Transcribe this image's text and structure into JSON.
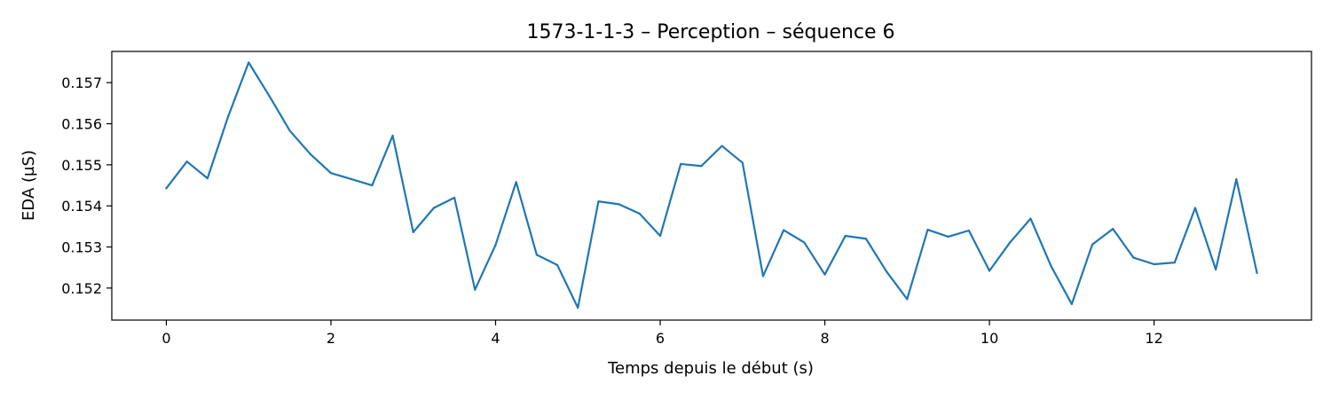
{
  "chart_data": {
    "type": "line",
    "title": "1573-1-1-3 – Perception – séquence 6",
    "xlabel": "Temps depuis le début (s)",
    "ylabel": "EDA (µS)",
    "xlim": [
      -0.6625,
      13.9125
    ],
    "ylim": [
      0.15122,
      0.15776
    ],
    "x_ticks": [
      0,
      2,
      4,
      6,
      8,
      10,
      12
    ],
    "y_ticks": [
      0.152,
      0.153,
      0.154,
      0.155,
      0.156,
      0.157
    ],
    "x_tick_labels": [
      "0",
      "2",
      "4",
      "6",
      "8",
      "10",
      "12"
    ],
    "y_tick_labels": [
      "0.152",
      "0.153",
      "0.154",
      "0.155",
      "0.156",
      "0.157"
    ],
    "grid": false,
    "legend": "none",
    "series": [
      {
        "color": "#1f77b4",
        "x": [
          0,
          0.25,
          0.5,
          0.75,
          1,
          1.25,
          1.5,
          1.75,
          2,
          2.25,
          2.5,
          2.75,
          3,
          3.25,
          3.5,
          3.75,
          4,
          4.25,
          4.5,
          4.75,
          5,
          5.25,
          5.5,
          5.75,
          6,
          6.25,
          6.5,
          6.75,
          7,
          7.25,
          7.5,
          7.75,
          8,
          8.25,
          8.5,
          8.75,
          9,
          9.25,
          9.5,
          9.75,
          10,
          10.25,
          10.5,
          10.75,
          11,
          11.25,
          11.5,
          11.75,
          12,
          12.25,
          12.5,
          12.75,
          13,
          13.25
        ],
        "y": [
          0.15443,
          0.15508,
          0.15467,
          0.15617,
          0.15749,
          0.15668,
          0.15583,
          0.15526,
          0.1548,
          0.15465,
          0.1545,
          0.15571,
          0.15336,
          0.15395,
          0.1542,
          0.15196,
          0.15305,
          0.15458,
          0.15281,
          0.15256,
          0.15152,
          0.15411,
          0.15404,
          0.15381,
          0.15327,
          0.15502,
          0.15497,
          0.15546,
          0.15505,
          0.15229,
          0.15341,
          0.15311,
          0.15233,
          0.15327,
          0.1532,
          0.1524,
          0.15173,
          0.15342,
          0.15325,
          0.1534,
          0.15242,
          0.15311,
          0.15369,
          0.15253,
          0.15161,
          0.15306,
          0.15344,
          0.15274,
          0.15258,
          0.15262,
          0.15395,
          0.15245,
          0.15465,
          0.15237
        ]
      }
    ]
  }
}
